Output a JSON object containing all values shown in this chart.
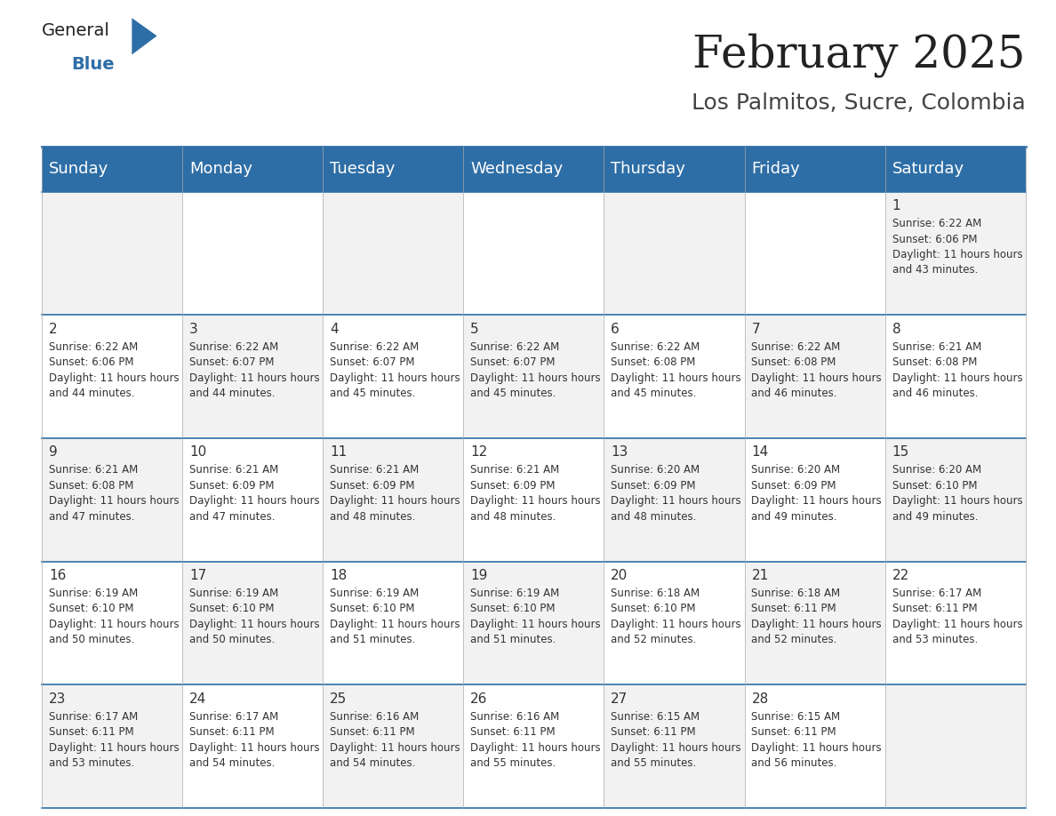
{
  "title": "February 2025",
  "subtitle": "Los Palmitos, Sucre, Colombia",
  "header_color": "#2E6EA6",
  "header_text_color": "#FFFFFF",
  "cell_bg_even": "#F2F2F2",
  "cell_bg_odd": "#FFFFFF",
  "border_color": "#2E6EA6",
  "day_names": [
    "Sunday",
    "Monday",
    "Tuesday",
    "Wednesday",
    "Thursday",
    "Friday",
    "Saturday"
  ],
  "days": [
    {
      "day": 1,
      "col": 6,
      "row": 0,
      "sunrise": "6:22 AM",
      "sunset": "6:06 PM",
      "daylight": "11 hours and 43 minutes."
    },
    {
      "day": 2,
      "col": 0,
      "row": 1,
      "sunrise": "6:22 AM",
      "sunset": "6:06 PM",
      "daylight": "11 hours and 44 minutes."
    },
    {
      "day": 3,
      "col": 1,
      "row": 1,
      "sunrise": "6:22 AM",
      "sunset": "6:07 PM",
      "daylight": "11 hours and 44 minutes."
    },
    {
      "day": 4,
      "col": 2,
      "row": 1,
      "sunrise": "6:22 AM",
      "sunset": "6:07 PM",
      "daylight": "11 hours and 45 minutes."
    },
    {
      "day": 5,
      "col": 3,
      "row": 1,
      "sunrise": "6:22 AM",
      "sunset": "6:07 PM",
      "daylight": "11 hours and 45 minutes."
    },
    {
      "day": 6,
      "col": 4,
      "row": 1,
      "sunrise": "6:22 AM",
      "sunset": "6:08 PM",
      "daylight": "11 hours and 45 minutes."
    },
    {
      "day": 7,
      "col": 5,
      "row": 1,
      "sunrise": "6:22 AM",
      "sunset": "6:08 PM",
      "daylight": "11 hours and 46 minutes."
    },
    {
      "day": 8,
      "col": 6,
      "row": 1,
      "sunrise": "6:21 AM",
      "sunset": "6:08 PM",
      "daylight": "11 hours and 46 minutes."
    },
    {
      "day": 9,
      "col": 0,
      "row": 2,
      "sunrise": "6:21 AM",
      "sunset": "6:08 PM",
      "daylight": "11 hours and 47 minutes."
    },
    {
      "day": 10,
      "col": 1,
      "row": 2,
      "sunrise": "6:21 AM",
      "sunset": "6:09 PM",
      "daylight": "11 hours and 47 minutes."
    },
    {
      "day": 11,
      "col": 2,
      "row": 2,
      "sunrise": "6:21 AM",
      "sunset": "6:09 PM",
      "daylight": "11 hours and 48 minutes."
    },
    {
      "day": 12,
      "col": 3,
      "row": 2,
      "sunrise": "6:21 AM",
      "sunset": "6:09 PM",
      "daylight": "11 hours and 48 minutes."
    },
    {
      "day": 13,
      "col": 4,
      "row": 2,
      "sunrise": "6:20 AM",
      "sunset": "6:09 PM",
      "daylight": "11 hours and 48 minutes."
    },
    {
      "day": 14,
      "col": 5,
      "row": 2,
      "sunrise": "6:20 AM",
      "sunset": "6:09 PM",
      "daylight": "11 hours and 49 minutes."
    },
    {
      "day": 15,
      "col": 6,
      "row": 2,
      "sunrise": "6:20 AM",
      "sunset": "6:10 PM",
      "daylight": "11 hours and 49 minutes."
    },
    {
      "day": 16,
      "col": 0,
      "row": 3,
      "sunrise": "6:19 AM",
      "sunset": "6:10 PM",
      "daylight": "11 hours and 50 minutes."
    },
    {
      "day": 17,
      "col": 1,
      "row": 3,
      "sunrise": "6:19 AM",
      "sunset": "6:10 PM",
      "daylight": "11 hours and 50 minutes."
    },
    {
      "day": 18,
      "col": 2,
      "row": 3,
      "sunrise": "6:19 AM",
      "sunset": "6:10 PM",
      "daylight": "11 hours and 51 minutes."
    },
    {
      "day": 19,
      "col": 3,
      "row": 3,
      "sunrise": "6:19 AM",
      "sunset": "6:10 PM",
      "daylight": "11 hours and 51 minutes."
    },
    {
      "day": 20,
      "col": 4,
      "row": 3,
      "sunrise": "6:18 AM",
      "sunset": "6:10 PM",
      "daylight": "11 hours and 52 minutes."
    },
    {
      "day": 21,
      "col": 5,
      "row": 3,
      "sunrise": "6:18 AM",
      "sunset": "6:11 PM",
      "daylight": "11 hours and 52 minutes."
    },
    {
      "day": 22,
      "col": 6,
      "row": 3,
      "sunrise": "6:17 AM",
      "sunset": "6:11 PM",
      "daylight": "11 hours and 53 minutes."
    },
    {
      "day": 23,
      "col": 0,
      "row": 4,
      "sunrise": "6:17 AM",
      "sunset": "6:11 PM",
      "daylight": "11 hours and 53 minutes."
    },
    {
      "day": 24,
      "col": 1,
      "row": 4,
      "sunrise": "6:17 AM",
      "sunset": "6:11 PM",
      "daylight": "11 hours and 54 minutes."
    },
    {
      "day": 25,
      "col": 2,
      "row": 4,
      "sunrise": "6:16 AM",
      "sunset": "6:11 PM",
      "daylight": "11 hours and 54 minutes."
    },
    {
      "day": 26,
      "col": 3,
      "row": 4,
      "sunrise": "6:16 AM",
      "sunset": "6:11 PM",
      "daylight": "11 hours and 55 minutes."
    },
    {
      "day": 27,
      "col": 4,
      "row": 4,
      "sunrise": "6:15 AM",
      "sunset": "6:11 PM",
      "daylight": "11 hours and 55 minutes."
    },
    {
      "day": 28,
      "col": 5,
      "row": 4,
      "sunrise": "6:15 AM",
      "sunset": "6:11 PM",
      "daylight": "11 hours and 56 minutes."
    }
  ],
  "num_rows": 5,
  "logo_text1": "General",
  "logo_text2": "Blue",
  "logo_triangle_color": "#2E6EA6",
  "title_fontsize": 36,
  "subtitle_fontsize": 18,
  "header_fontsize": 13,
  "day_num_fontsize": 11,
  "cell_text_fontsize": 8.5
}
